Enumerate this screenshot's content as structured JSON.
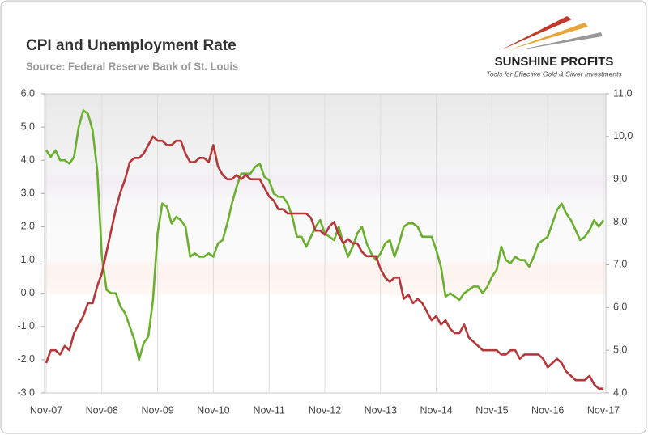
{
  "chart_data": {
    "type": "line",
    "title": "CPI and Unemployment Rate",
    "subtitle": "Source: Federal Reserve Bank of St. Louis",
    "logo": {
      "name": "SUNSHINE PROFITS",
      "tagline": "Tools for Effective Gold & Silver Investments"
    },
    "categories": [
      "Nov-07",
      null,
      null,
      null,
      null,
      null,
      null,
      null,
      null,
      null,
      null,
      null,
      "Nov-08",
      null,
      null,
      null,
      null,
      null,
      null,
      null,
      null,
      null,
      null,
      null,
      "Nov-09",
      null,
      null,
      null,
      null,
      null,
      null,
      null,
      null,
      null,
      null,
      null,
      "Nov-10",
      null,
      null,
      null,
      null,
      null,
      null,
      null,
      null,
      null,
      null,
      null,
      "Nov-11",
      null,
      null,
      null,
      null,
      null,
      null,
      null,
      null,
      null,
      null,
      null,
      "Nov-12",
      null,
      null,
      null,
      null,
      null,
      null,
      null,
      null,
      null,
      null,
      null,
      "Nov-13",
      null,
      null,
      null,
      null,
      null,
      null,
      null,
      null,
      null,
      null,
      null,
      "Nov-14",
      null,
      null,
      null,
      null,
      null,
      null,
      null,
      null,
      null,
      null,
      null,
      "Nov-15",
      null,
      null,
      null,
      null,
      null,
      null,
      null,
      null,
      null,
      null,
      null,
      "Nov-16",
      null,
      null,
      null,
      null,
      null,
      null,
      null,
      null,
      null,
      null,
      null,
      "Nov-17"
    ],
    "series": [
      {
        "color": "#6aaf2e",
        "values": [
          4.3,
          4.1,
          4.3,
          4.0,
          4.0,
          3.9,
          4.1,
          5.0,
          5.5,
          5.4,
          4.9,
          3.7,
          1.1,
          0.1,
          0.0,
          0.0,
          -0.4,
          -0.6,
          -1.0,
          -1.4,
          -2.0,
          -1.5,
          -1.3,
          -0.2,
          1.8,
          2.7,
          2.6,
          2.1,
          2.3,
          2.2,
          2.0,
          1.1,
          1.2,
          1.1,
          1.1,
          1.2,
          1.1,
          1.5,
          1.6,
          2.1,
          2.7,
          3.2,
          3.6,
          3.6,
          3.6,
          3.8,
          3.9,
          3.5,
          3.4,
          3.0,
          2.9,
          2.9,
          2.7,
          2.3,
          1.7,
          1.7,
          1.4,
          1.7,
          2.0,
          2.2,
          1.8,
          1.7,
          1.6,
          2.0,
          1.5,
          1.1,
          1.4,
          1.8,
          2.0,
          1.5,
          1.2,
          1.0,
          1.2,
          1.5,
          1.6,
          1.1,
          1.5,
          2.0,
          2.1,
          2.1,
          2.0,
          1.7,
          1.7,
          1.7,
          1.3,
          0.8,
          -0.1,
          0.0,
          -0.1,
          -0.2,
          0.0,
          0.1,
          0.2,
          0.2,
          0.0,
          0.2,
          0.5,
          0.7,
          1.4,
          1.0,
          0.9,
          1.1,
          1.0,
          1.0,
          0.8,
          1.1,
          1.5,
          1.6,
          1.7,
          2.1,
          2.5,
          2.7,
          2.4,
          2.2,
          1.9,
          1.6,
          1.7,
          1.9,
          2.2,
          2.0,
          2.2
        ]
      },
      {
        "color": "#b5373a",
        "axis": "y2",
        "values": [
          4.7,
          5.0,
          5.0,
          4.9,
          5.1,
          5.0,
          5.4,
          5.6,
          5.8,
          6.1,
          6.1,
          6.5,
          6.8,
          7.3,
          7.8,
          8.3,
          8.7,
          9.0,
          9.4,
          9.5,
          9.5,
          9.6,
          9.8,
          10.0,
          9.9,
          9.9,
          9.8,
          9.8,
          9.9,
          9.9,
          9.6,
          9.4,
          9.4,
          9.5,
          9.5,
          9.4,
          9.8,
          9.3,
          9.1,
          9.0,
          9.0,
          9.1,
          9.0,
          9.1,
          9.0,
          9.0,
          9.0,
          8.8,
          8.6,
          8.5,
          8.3,
          8.3,
          8.2,
          8.2,
          8.2,
          8.2,
          8.2,
          8.1,
          7.8,
          7.8,
          7.7,
          7.9,
          8.0,
          7.7,
          7.5,
          7.6,
          7.5,
          7.5,
          7.3,
          7.2,
          7.2,
          7.2,
          6.9,
          6.7,
          6.6,
          6.7,
          6.7,
          6.2,
          6.3,
          6.1,
          6.2,
          6.1,
          5.9,
          5.7,
          5.8,
          5.6,
          5.7,
          5.5,
          5.4,
          5.4,
          5.6,
          5.3,
          5.2,
          5.1,
          5.0,
          5.0,
          5.0,
          5.0,
          4.9,
          4.9,
          5.0,
          5.0,
          4.8,
          4.9,
          4.9,
          4.9,
          4.9,
          4.8,
          4.6,
          4.7,
          4.8,
          4.7,
          4.5,
          4.4,
          4.3,
          4.3,
          4.3,
          4.4,
          4.2,
          4.1,
          4.1
        ]
      }
    ],
    "ylim": [
      -3,
      6
    ],
    "yticks": [
      {
        "value": -3,
        "label": "-3,0"
      },
      {
        "value": -2,
        "label": "-2,0"
      },
      {
        "value": -1,
        "label": "-1,0"
      },
      {
        "value": 0,
        "label": "0,0"
      },
      {
        "value": 1,
        "label": "1,0"
      },
      {
        "value": 2,
        "label": "2,0"
      },
      {
        "value": 3,
        "label": "3,0"
      },
      {
        "value": 4,
        "label": "4,0"
      },
      {
        "value": 5,
        "label": "5,0"
      },
      {
        "value": 6,
        "label": "6,0"
      }
    ],
    "y2lim": [
      4,
      11
    ],
    "y2ticks": [
      {
        "value": 4,
        "label": "4,0"
      },
      {
        "value": 5,
        "label": "5,0"
      },
      {
        "value": 6,
        "label": "6,0"
      },
      {
        "value": 7,
        "label": "7,0"
      },
      {
        "value": 8,
        "label": "8,0"
      },
      {
        "value": 9,
        "label": "9,0"
      },
      {
        "value": 10,
        "label": "10,0"
      },
      {
        "value": 11,
        "label": "11,0"
      }
    ],
    "grid": true
  }
}
